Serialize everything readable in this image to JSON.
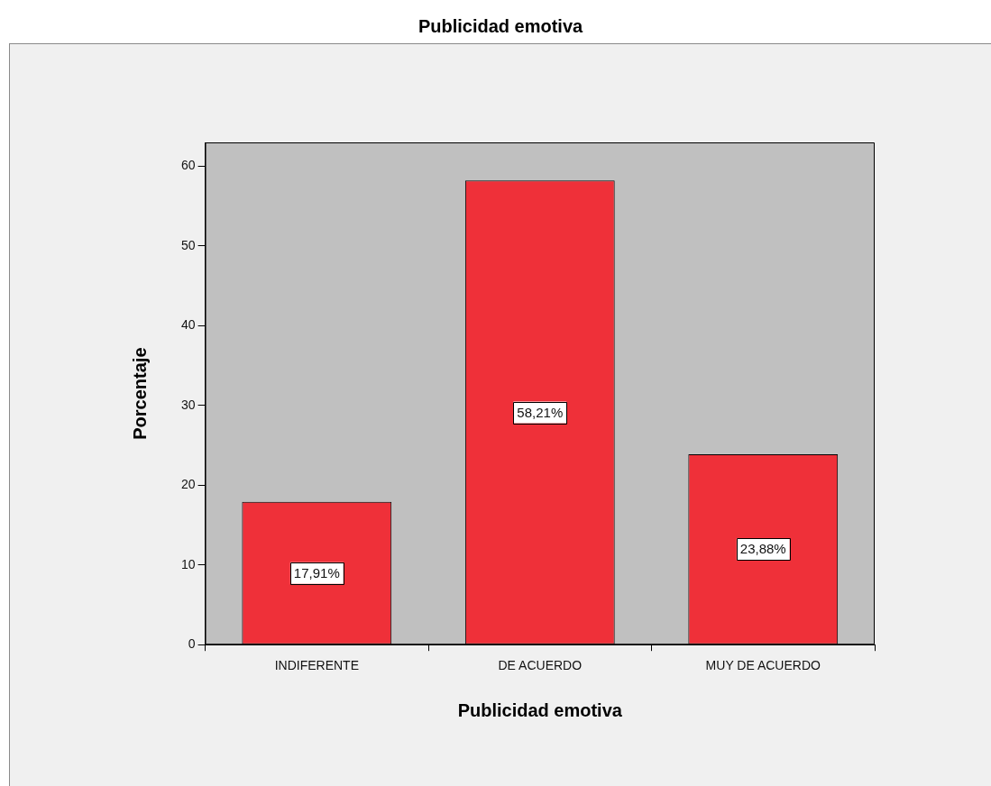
{
  "chart_data": {
    "type": "bar",
    "title": "Publicidad emotiva",
    "xlabel": "Publicidad emotiva",
    "ylabel": "Porcentaje",
    "categories": [
      "INDIFERENTE",
      "DE ACUERDO",
      "MUY DE ACUERDO"
    ],
    "values": [
      17.91,
      58.21,
      23.88
    ],
    "value_labels": [
      "17,91%",
      "58,21%",
      "23,88%"
    ],
    "color": "#ef3039",
    "ylim": [
      0,
      63
    ],
    "yticks": [
      0,
      10,
      20,
      30,
      40,
      50,
      60
    ],
    "grid": false,
    "legend": false
  }
}
